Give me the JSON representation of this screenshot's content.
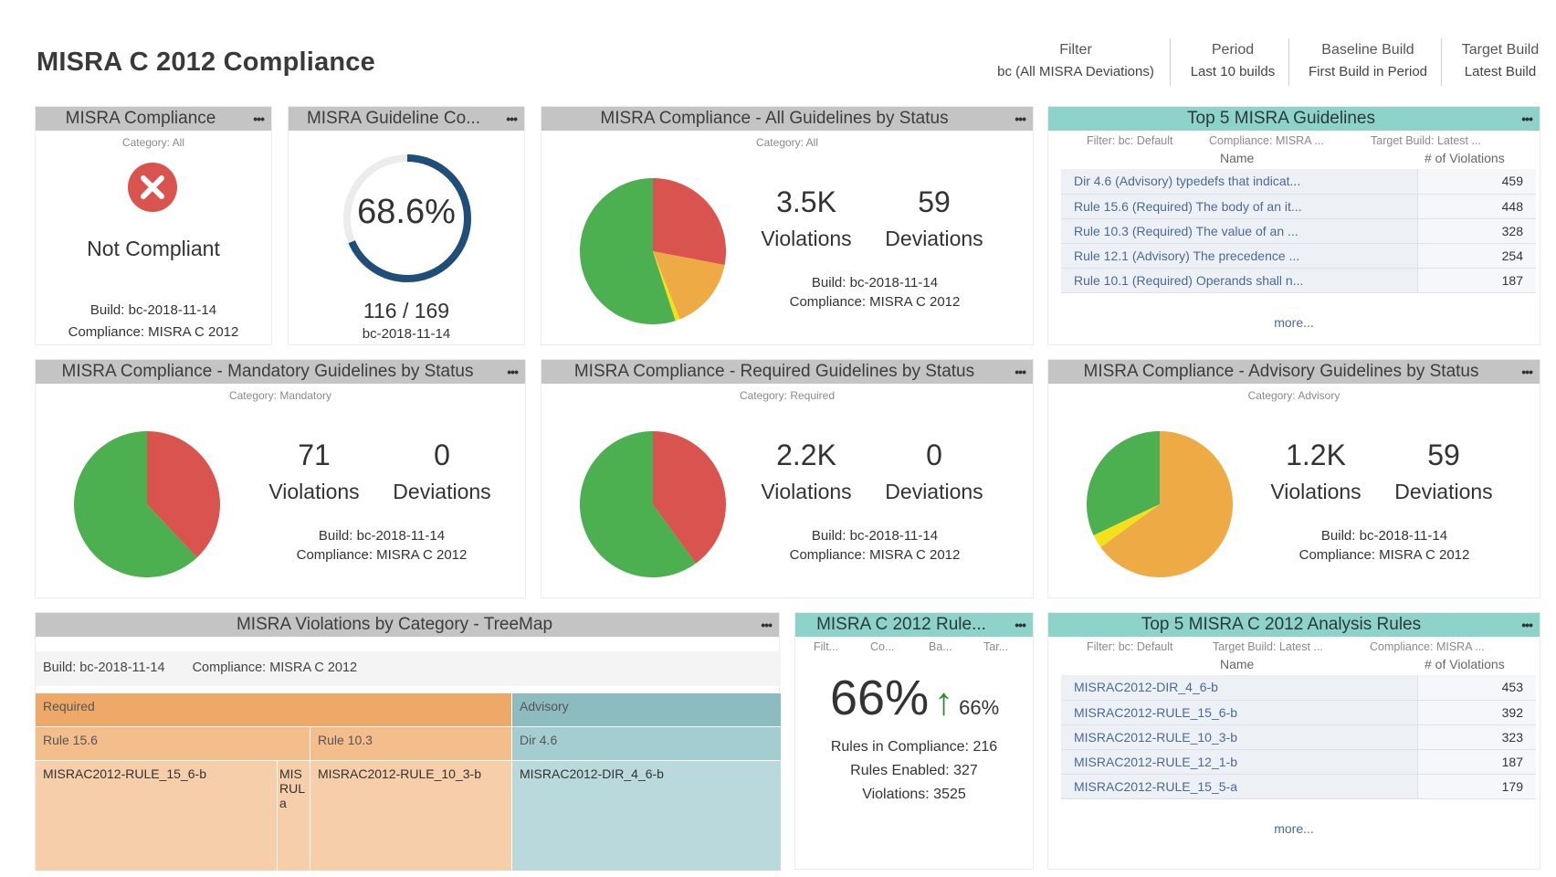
{
  "page": {
    "title": "MISRA C 2012 Compliance"
  },
  "header_filters": [
    {
      "label": "Filter",
      "value": "bc (All MISRA Deviations)"
    },
    {
      "label": "Period",
      "value": "Last 10 builds"
    },
    {
      "label": "Baseline Build",
      "value": "First Build in Period"
    },
    {
      "label": "Target Build",
      "value": "Latest Build"
    }
  ],
  "widgets": {
    "compliance": {
      "title": "MISRA Compliance",
      "category": "Category: All",
      "status": "Not Compliant",
      "build": "Build: bc-2018-11-14",
      "compliance": "Compliance: MISRA C 2012"
    },
    "guideline": {
      "title": "MISRA Guideline Co...",
      "percent": "68.6%",
      "percent_value": 0.686,
      "fraction": "116 / 169",
      "build": "bc-2018-11-14"
    },
    "all_status": {
      "title": "MISRA Compliance - All Guidelines by Status",
      "category": "Category: All",
      "violations_num": "3.5K",
      "violations_label": "Violations",
      "deviations_num": "59",
      "deviations_label": "Deviations",
      "build": "Build: bc-2018-11-14",
      "compliance": "Compliance: MISRA C 2012"
    },
    "top5_guidelines": {
      "title": "Top 5 MISRA Guidelines",
      "meta": [
        "Filter: bc: Default",
        "Compliance: MISRA ...",
        "Target Build: Latest ..."
      ],
      "col_name": "Name",
      "col_count": "# of Violations",
      "rows": [
        {
          "name": "Dir 4.6 (Advisory) typedefs that indicat...",
          "count": "459"
        },
        {
          "name": "Rule 15.6 (Required) The body of an it...",
          "count": "448"
        },
        {
          "name": "Rule 10.3 (Required) The value of an ...",
          "count": "328"
        },
        {
          "name": "Rule 12.1 (Advisory) The precedence ...",
          "count": "254"
        },
        {
          "name": "Rule 10.1 (Required) Operands shall n...",
          "count": "187"
        }
      ],
      "more": "more..."
    },
    "mandatory": {
      "title": "MISRA Compliance - Mandatory Guidelines by Status",
      "category": "Category: Mandatory",
      "violations_num": "71",
      "violations_label": "Violations",
      "deviations_num": "0",
      "deviations_label": "Deviations",
      "build": "Build: bc-2018-11-14",
      "compliance": "Compliance: MISRA C 2012"
    },
    "required": {
      "title": "MISRA Compliance - Required Guidelines by Status",
      "category": "Category: Required",
      "violations_num": "2.2K",
      "violations_label": "Violations",
      "deviations_num": "0",
      "deviations_label": "Deviations",
      "build": "Build: bc-2018-11-14",
      "compliance": "Compliance: MISRA C 2012"
    },
    "advisory": {
      "title": "MISRA Compliance - Advisory Guidelines by Status",
      "category": "Category: Advisory",
      "violations_num": "1.2K",
      "violations_label": "Violations",
      "deviations_num": "59",
      "deviations_label": "Deviations",
      "build": "Build: bc-2018-11-14",
      "compliance": "Compliance: MISRA C 2012"
    },
    "treemap": {
      "title": "MISRA Violations by Category - TreeMap",
      "build": "Build: bc-2018-11-14",
      "compliance": "Compliance: MISRA C 2012",
      "required": "Required",
      "advisory": "Advisory",
      "rule_15_6": "Rule 15.6",
      "rule_10_3": "Rule 10.3",
      "dir_4_6": "Dir 4.6",
      "leaf_15_6": "MISRAC2012-RULE_15_6-b",
      "leaf_small": "MIS RUL a",
      "leaf_10_3": "MISRAC2012-RULE_10_3-b",
      "leaf_dir": "MISRAC2012-DIR_4_6-b"
    },
    "rule_compliance": {
      "title": "MISRA C 2012 Rule...",
      "meta": [
        "Filt...",
        "Co...",
        "Ba...",
        "Tar..."
      ],
      "percent": "66%",
      "baseline_percent": "66%",
      "rules_in_compliance": "Rules in Compliance: 216",
      "rules_enabled": "Rules Enabled: 327",
      "violations": "Violations: 3525"
    },
    "top5_rules": {
      "title": "Top 5 MISRA C 2012 Analysis Rules",
      "meta": [
        "Filter: bc: Default",
        "Target Build: Latest ...",
        "Compliance: MISRA ..."
      ],
      "col_name": "Name",
      "col_count": "# of Violations",
      "rows": [
        {
          "name": "MISRAC2012-DIR_4_6-b",
          "count": "453"
        },
        {
          "name": "MISRAC2012-RULE_15_6-b",
          "count": "392"
        },
        {
          "name": "MISRAC2012-RULE_10_3-b",
          "count": "323"
        },
        {
          "name": "MISRAC2012-RULE_12_1-b",
          "count": "187"
        },
        {
          "name": "MISRAC2012-RULE_15_5-a",
          "count": "179"
        }
      ],
      "more": "more..."
    }
  },
  "pies": {
    "all": [
      {
        "name": "compliant",
        "value": 0.55,
        "color": "#4caf50"
      },
      {
        "name": "violations-yellow",
        "value": 0.01,
        "color": "#f5e11a"
      },
      {
        "name": "advisory-orange",
        "value": 0.16,
        "color": "#eeab45"
      },
      {
        "name": "violations-red",
        "value": 0.28,
        "color": "#d9534f"
      }
    ],
    "mandatory": [
      {
        "name": "compliant",
        "value": 0.62,
        "color": "#4caf50"
      },
      {
        "name": "violations-red",
        "value": 0.38,
        "color": "#d9534f"
      }
    ],
    "required": [
      {
        "name": "compliant",
        "value": 0.6,
        "color": "#4caf50"
      },
      {
        "name": "violations-red",
        "value": 0.4,
        "color": "#d9534f"
      }
    ],
    "advisory": [
      {
        "name": "compliant",
        "value": 0.32,
        "color": "#4caf50"
      },
      {
        "name": "violations-yellow",
        "value": 0.03,
        "color": "#f5e11a"
      },
      {
        "name": "advisory-orange",
        "value": 0.65,
        "color": "#eeab45"
      }
    ]
  },
  "colors": {
    "error": "#d9534f",
    "gauge": "#1f4e79",
    "required_head": "#eea969",
    "required_sub": "#f3bd8c",
    "required_leaf": "#f7ceaa",
    "advisory_head": "#8cbbc0",
    "advisory_sub": "#a4cdd2",
    "advisory_leaf": "#b9d9dc"
  }
}
